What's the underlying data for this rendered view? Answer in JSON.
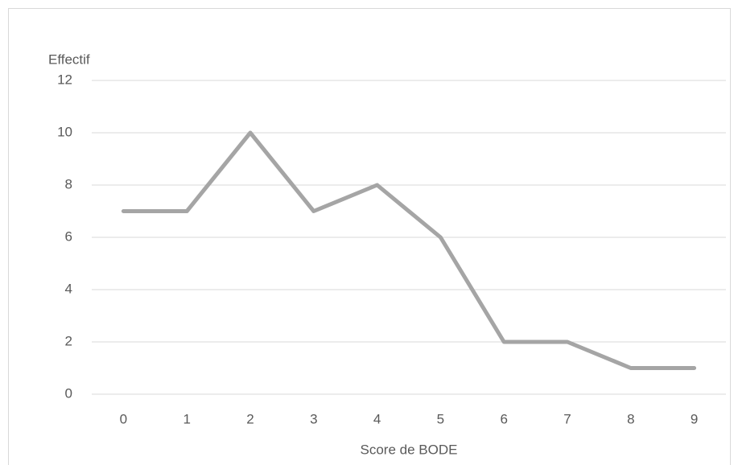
{
  "chart_data": {
    "type": "line",
    "ylabel": "Effectif",
    "xlabel": "Score de BODE",
    "categories": [
      "0",
      "1",
      "2",
      "3",
      "4",
      "5",
      "6",
      "7",
      "8",
      "9"
    ],
    "values": [
      7,
      7,
      10,
      7,
      8,
      6,
      2,
      2,
      1,
      1
    ],
    "color": "#a5a5a5",
    "ylim": [
      0,
      12
    ],
    "yticks": [
      0,
      2,
      4,
      6,
      8,
      10,
      12
    ],
    "grid": true
  }
}
